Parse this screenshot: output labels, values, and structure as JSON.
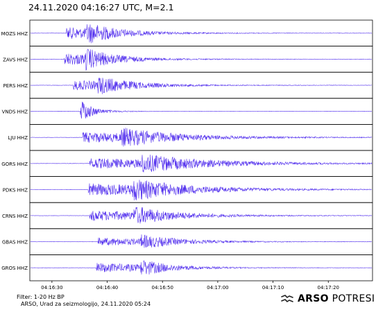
{
  "header": {
    "title": "24.11.2020  04:16:27 UTC, M=2.1"
  },
  "chart_data": {
    "type": "line",
    "title": "24.11.2020  04:16:27 UTC, M=2.1",
    "xlabel": "",
    "ylabel": "",
    "x_ticks": [
      "04:16:30",
      "04:16:40",
      "04:16:50",
      "04:17:00",
      "04:17:10",
      "04:17:20"
    ],
    "x_tick_seconds": [
      30,
      40,
      50,
      60,
      70,
      80
    ],
    "xlim_seconds": [
      26,
      88
    ],
    "grid": false,
    "line_color": "#5533ee",
    "series": [
      {
        "name": "MOZS HHZ",
        "p_onset_s": 32.6,
        "s_arrival_s": 36.3,
        "amplitude": 0.95,
        "duration_s": 22
      },
      {
        "name": "ZAVS HHZ",
        "p_onset_s": 32.2,
        "s_arrival_s": 36.0,
        "amplitude": 1.0,
        "duration_s": 20
      },
      {
        "name": "PERS HHZ",
        "p_onset_s": 33.9,
        "s_arrival_s": 38.3,
        "amplitude": 0.8,
        "duration_s": 25
      },
      {
        "name": "VNDS HHZ",
        "p_onset_s": 35.1,
        "s_arrival_s": 35.3,
        "amplitude": 0.95,
        "duration_s": 7
      },
      {
        "name": "LJU HHZ",
        "p_onset_s": 35.6,
        "s_arrival_s": 42.5,
        "amplitude": 0.85,
        "duration_s": 38
      },
      {
        "name": "GORS HHZ",
        "p_onset_s": 36.8,
        "s_arrival_s": 46.0,
        "amplitude": 0.85,
        "duration_s": 45
      },
      {
        "name": "PDKS HHZ",
        "p_onset_s": 36.5,
        "s_arrival_s": 44.5,
        "amplitude": 1.0,
        "duration_s": 38
      },
      {
        "name": "CRNS HHZ",
        "p_onset_s": 36.8,
        "s_arrival_s": 44.8,
        "amplitude": 0.85,
        "duration_s": 30
      },
      {
        "name": "GBAS HHZ",
        "p_onset_s": 38.3,
        "s_arrival_s": 46.0,
        "amplitude": 0.65,
        "duration_s": 28
      },
      {
        "name": "GROS HHZ",
        "p_onset_s": 38.0,
        "s_arrival_s": 46.0,
        "amplitude": 0.8,
        "duration_s": 22
      }
    ]
  },
  "footer": {
    "filter": "Filter: 1-20 Hz BP",
    "credit": "ARSO, Urad za seizmologijo, 24.11.2020  05:24"
  },
  "logo": {
    "brand": "ARSO",
    "word": "POTRESI",
    "icon": "seismograph-logo-icon"
  }
}
